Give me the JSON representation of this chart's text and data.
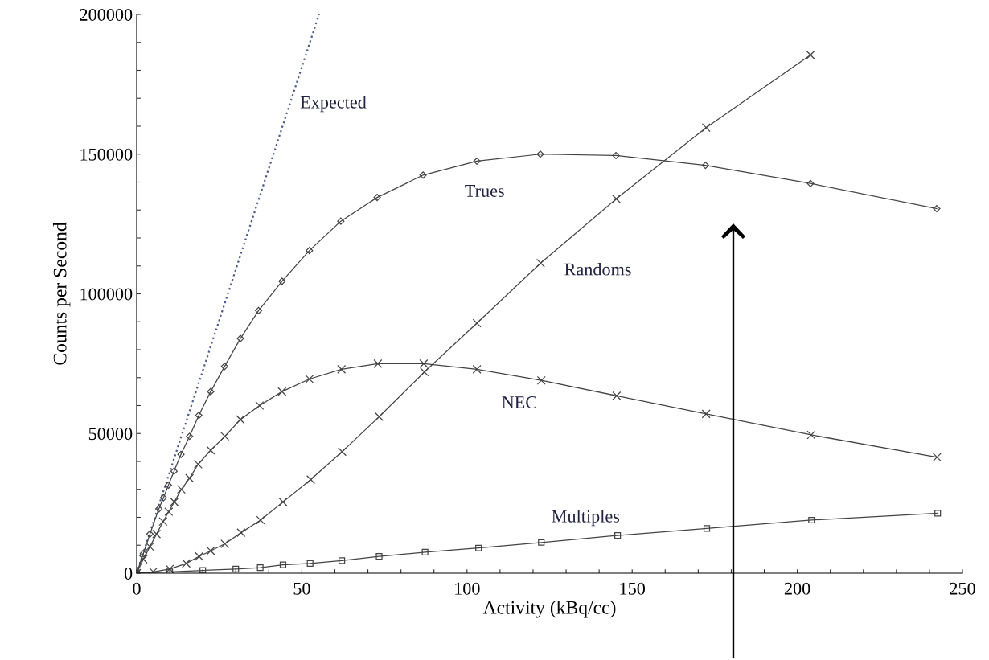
{
  "chart_data": {
    "type": "line",
    "xlabel": "Activity (kBq/cc)",
    "ylabel": "Counts per Second",
    "xlim": [
      0,
      250
    ],
    "ylim": [
      0,
      200000
    ],
    "xticks": [
      0,
      {
        "value": 10,
        "label": null
      },
      {
        "value": 20,
        "label": null
      },
      {
        "value": 30,
        "label": null
      },
      {
        "value": 40,
        "label": null
      },
      50,
      {
        "value": 60,
        "label": null
      },
      {
        "value": 70,
        "label": null
      },
      {
        "value": 80,
        "label": null
      },
      {
        "value": 90,
        "label": null
      },
      100,
      {
        "value": 110,
        "label": null
      },
      {
        "value": 120,
        "label": null
      },
      {
        "value": 130,
        "label": null
      },
      {
        "value": 140,
        "label": null
      },
      150,
      {
        "value": 160,
        "label": null
      },
      {
        "value": 170,
        "label": null
      },
      {
        "value": 180,
        "label": null
      },
      {
        "value": 190,
        "label": null
      },
      200,
      {
        "value": 210,
        "label": null
      },
      {
        "value": 220,
        "label": null
      },
      {
        "value": 230,
        "label": null
      },
      {
        "value": 240,
        "label": null
      },
      250
    ],
    "yticks": [
      0,
      {
        "value": 10000,
        "label": null
      },
      {
        "value": 20000,
        "label": null
      },
      {
        "value": 30000,
        "label": null
      },
      {
        "value": 40000,
        "label": null
      },
      50000,
      {
        "value": 60000,
        "label": null
      },
      {
        "value": 70000,
        "label": null
      },
      {
        "value": 80000,
        "label": null
      },
      {
        "value": 90000,
        "label": null
      },
      100000,
      {
        "value": 110000,
        "label": null
      },
      {
        "value": 120000,
        "label": null
      },
      {
        "value": 130000,
        "label": null
      },
      {
        "value": 140000,
        "label": null
      },
      150000,
      {
        "value": 160000,
        "label": null
      },
      {
        "value": 170000,
        "label": null
      },
      {
        "value": 180000,
        "label": null
      },
      {
        "value": 190000,
        "label": null
      },
      200000
    ],
    "grid": false,
    "legend": false,
    "series": [
      {
        "name": "Expected",
        "color": "#4a5a8a",
        "marker": "none",
        "line_style": "dotted",
        "x": [
          0,
          55.2
        ],
        "values": [
          0,
          200000
        ]
      },
      {
        "name": "Trues",
        "color": "#444444",
        "marker": "diamond",
        "line_style": "solid",
        "x": [
          0,
          2,
          4,
          6.7,
          8.1,
          9.6,
          11.3,
          13.4,
          16.0,
          18.8,
          22.4,
          26.6,
          31.4,
          36.9,
          44.0,
          52.3,
          61.8,
          72.8,
          86.7,
          103.0,
          122.2,
          145.1,
          172.2,
          204.0,
          242.2
        ],
        "values": [
          0,
          7000,
          14000,
          23000,
          27000,
          31500,
          36500,
          42500,
          49000,
          56500,
          65000,
          74000,
          84000,
          94000,
          104500,
          115500,
          126000,
          134500,
          142500,
          147500,
          150000,
          149500,
          146000,
          139500,
          130500
        ]
      },
      {
        "name": "Randoms",
        "color": "#444444",
        "marker": "cross",
        "line_style": "solid",
        "x": [
          0,
          5,
          10,
          15,
          18.9,
          22.4,
          26.7,
          31.6,
          37.5,
          44.3,
          52.7,
          62.2,
          73.4,
          87.1,
          103.0,
          122.3,
          145.2,
          172.4,
          204.0
        ],
        "values": [
          0,
          500,
          1500,
          3500,
          6000,
          8000,
          10500,
          14500,
          19000,
          25500,
          33500,
          43500,
          56000,
          72000,
          89500,
          111000,
          134000,
          159500,
          185500
        ]
      },
      {
        "name": "NEC",
        "color": "#444444",
        "marker": "cross",
        "line_style": "solid",
        "x": [
          0,
          2,
          4,
          6,
          8,
          9.7,
          11.4,
          13.5,
          16.0,
          18.6,
          22.4,
          26.7,
          31.4,
          37.2,
          44.0,
          52.3,
          62.0,
          73.0,
          86.9,
          103.0,
          122.5,
          145.3,
          172.4,
          204.2,
          242.3
        ],
        "values": [
          0,
          5000,
          9500,
          14000,
          18500,
          22000,
          25500,
          30000,
          34000,
          39000,
          44000,
          49000,
          55000,
          60000,
          65000,
          69500,
          73000,
          75000,
          75000,
          73000,
          69000,
          63500,
          57000,
          49500,
          41500
        ]
      },
      {
        "name": "Multiples",
        "color": "#444444",
        "marker": "square",
        "line_style": "solid",
        "x": [
          0,
          10,
          20,
          30,
          37.4,
          44.3,
          52.5,
          62.1,
          73.4,
          87.3,
          103.5,
          122.5,
          145.6,
          172.6,
          204.3,
          242.5
        ],
        "values": [
          0,
          500,
          1000,
          1500,
          2000,
          3000,
          3500,
          4500,
          6000,
          7500,
          9000,
          11000,
          13500,
          16000,
          19000,
          21500
        ]
      }
    ]
  }
}
